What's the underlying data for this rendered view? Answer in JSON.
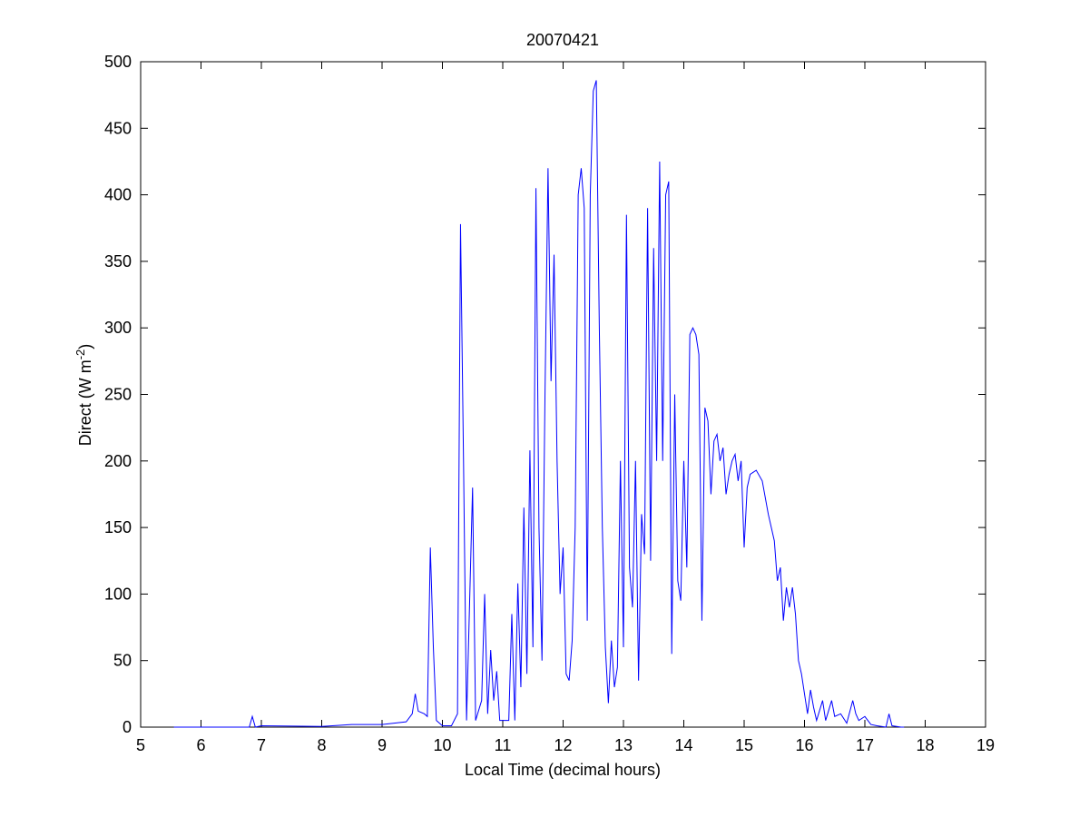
{
  "chart_data": {
    "type": "line",
    "title": "20070421",
    "xlabel": "Local Time (decimal hours)",
    "ylabel": {
      "text": "Direct (W m",
      "superscript": "-2",
      "suffix": ")"
    },
    "color": "#0000ff",
    "x": [
      5.55,
      6.8,
      6.85,
      6.9,
      7.0,
      8.0,
      8.5,
      9.0,
      9.4,
      9.5,
      9.55,
      9.6,
      9.7,
      9.75,
      9.8,
      9.85,
      9.9,
      10.0,
      10.15,
      10.25,
      10.3,
      10.35,
      10.4,
      10.5,
      10.55,
      10.65,
      10.7,
      10.75,
      10.8,
      10.85,
      10.9,
      10.95,
      11.1,
      11.15,
      11.2,
      11.25,
      11.3,
      11.35,
      11.4,
      11.45,
      11.5,
      11.55,
      11.6,
      11.65,
      11.7,
      11.75,
      11.8,
      11.85,
      11.9,
      11.95,
      12.0,
      12.05,
      12.1,
      12.15,
      12.2,
      12.25,
      12.3,
      12.35,
      12.4,
      12.45,
      12.5,
      12.55,
      12.6,
      12.65,
      12.7,
      12.75,
      12.8,
      12.85,
      12.9,
      12.95,
      13.0,
      13.05,
      13.1,
      13.15,
      13.2,
      13.25,
      13.3,
      13.35,
      13.4,
      13.45,
      13.5,
      13.55,
      13.6,
      13.65,
      13.7,
      13.75,
      13.8,
      13.85,
      13.9,
      13.95,
      14.0,
      14.05,
      14.1,
      14.15,
      14.2,
      14.25,
      14.3,
      14.35,
      14.4,
      14.45,
      14.5,
      14.55,
      14.6,
      14.65,
      14.7,
      14.75,
      14.8,
      14.85,
      14.9,
      14.95,
      15.0,
      15.05,
      15.1,
      15.2,
      15.3,
      15.4,
      15.5,
      15.55,
      15.6,
      15.65,
      15.7,
      15.75,
      15.8,
      15.85,
      15.9,
      15.95,
      16.0,
      16.05,
      16.1,
      16.15,
      16.2,
      16.3,
      16.35,
      16.45,
      16.5,
      16.6,
      16.7,
      16.8,
      16.85,
      16.9,
      17.0,
      17.1,
      17.2,
      17.35,
      17.4,
      17.45,
      17.6,
      17.65
    ],
    "values": [
      0,
      0,
      8,
      0,
      1,
      0.5,
      2,
      2,
      4,
      10,
      25,
      12,
      10,
      8,
      135,
      60,
      5,
      1,
      1,
      10,
      378,
      200,
      5,
      180,
      5,
      20,
      100,
      10,
      58,
      20,
      42,
      5,
      5,
      85,
      5,
      108,
      30,
      165,
      40,
      208,
      60,
      405,
      150,
      50,
      250,
      420,
      260,
      355,
      200,
      100,
      135,
      40,
      35,
      65,
      150,
      400,
      420,
      390,
      80,
      400,
      478,
      486,
      300,
      150,
      60,
      18,
      65,
      30,
      45,
      200,
      60,
      385,
      120,
      90,
      200,
      35,
      160,
      130,
      390,
      125,
      360,
      200,
      425,
      200,
      400,
      410,
      55,
      250,
      110,
      95,
      200,
      120,
      295,
      300,
      295,
      280,
      80,
      240,
      230,
      175,
      215,
      220,
      200,
      210,
      175,
      190,
      200,
      205,
      185,
      200,
      135,
      180,
      190,
      193,
      185,
      160,
      140,
      110,
      120,
      80,
      105,
      90,
      105,
      85,
      50,
      40,
      25,
      10,
      28,
      15,
      5,
      20,
      5,
      20,
      8,
      10,
      3,
      20,
      10,
      5,
      8,
      2,
      1,
      0,
      10,
      1,
      0,
      0
    ],
    "xlim": [
      5,
      19
    ],
    "xticks": [
      5,
      6,
      7,
      8,
      9,
      10,
      11,
      12,
      13,
      14,
      15,
      16,
      17,
      18,
      19
    ],
    "ylim": [
      0,
      500
    ],
    "yticks": [
      0,
      50,
      100,
      150,
      200,
      250,
      300,
      350,
      400,
      450,
      500
    ],
    "grid": false
  }
}
